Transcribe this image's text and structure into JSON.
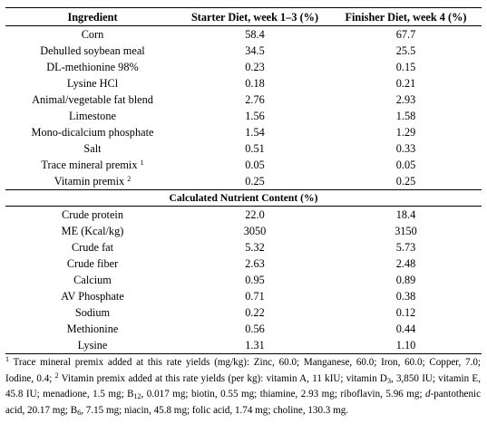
{
  "table": {
    "headers": [
      "Ingredient",
      "Starter Diet, week 1–3 (%)",
      "Finisher Diet, week 4 (%)"
    ],
    "ingredients": [
      {
        "name": "Corn",
        "sup": "",
        "starter": "58.4",
        "finisher": "67.7"
      },
      {
        "name": "Dehulled soybean meal",
        "sup": "",
        "starter": "34.5",
        "finisher": "25.5"
      },
      {
        "name": "DL-methionine 98%",
        "sup": "",
        "starter": "0.23",
        "finisher": "0.15"
      },
      {
        "name": "Lysine HCl",
        "sup": "",
        "starter": "0.18",
        "finisher": "0.21"
      },
      {
        "name": "Animal/vegetable fat blend",
        "sup": "",
        "starter": "2.76",
        "finisher": "2.93"
      },
      {
        "name": "Limestone",
        "sup": "",
        "starter": "1.56",
        "finisher": "1.58"
      },
      {
        "name": "Mono-dicalcium phosphate",
        "sup": "",
        "starter": "1.54",
        "finisher": "1.29"
      },
      {
        "name": "Salt",
        "sup": "",
        "starter": "0.51",
        "finisher": "0.33"
      },
      {
        "name": "Trace mineral premix",
        "sup": "1",
        "starter": "0.05",
        "finisher": "0.05"
      },
      {
        "name": "Vitamin premix",
        "sup": "2",
        "starter": "0.25",
        "finisher": "0.25"
      }
    ],
    "nutrient_section_title": "Calculated Nutrient Content (%)",
    "nutrients": [
      {
        "name": "Crude protein",
        "starter": "22.0",
        "finisher": "18.4"
      },
      {
        "name": "ME (Kcal/kg)",
        "starter": "3050",
        "finisher": "3150"
      },
      {
        "name": "Crude fat",
        "starter": "5.32",
        "finisher": "5.73"
      },
      {
        "name": "Crude fiber",
        "starter": "2.63",
        "finisher": "2.48"
      },
      {
        "name": "Calcium",
        "starter": "0.95",
        "finisher": "0.89"
      },
      {
        "name": "AV Phosphate",
        "starter": "0.71",
        "finisher": "0.38"
      },
      {
        "name": "Sodium",
        "starter": "0.22",
        "finisher": "0.12"
      },
      {
        "name": "Methionine",
        "starter": "0.56",
        "finisher": "0.44"
      },
      {
        "name": "Lysine",
        "starter": "1.31",
        "finisher": "1.10"
      }
    ]
  },
  "footnote": {
    "fn1_mark": "1",
    "fn1_text": " Trace mineral premix added at this rate yields (mg/kg): Zinc, 60.0; Manganese, 60.0; Iron, 60.0; Copper, 7.0; Iodine, 0.4; ",
    "fn2_mark": "2",
    "fn2_text_a": " Vitamin premix added at this rate yields (per kg): vitamin A, 11 kIU; vitamin D",
    "d3_sub": "3",
    "fn2_text_b": ", 3,850 IU; vitamin E, 45.8 IU; menadione, 1.5 mg; B",
    "b12_sub": "12",
    "fn2_text_c": ", 0.017 mg; biotin, 0.55 mg; thiamine, 2.93 mg; riboflavin, 5.96 mg; ",
    "d_prefix": "d",
    "fn2_text_d": "-pantothenic acid, 20.17 mg; B",
    "b6_sub": "6",
    "fn2_text_e": ", 7.15 mg; niacin, 45.8 mg; folic acid, 1.74 mg; choline, 130.3 mg."
  }
}
